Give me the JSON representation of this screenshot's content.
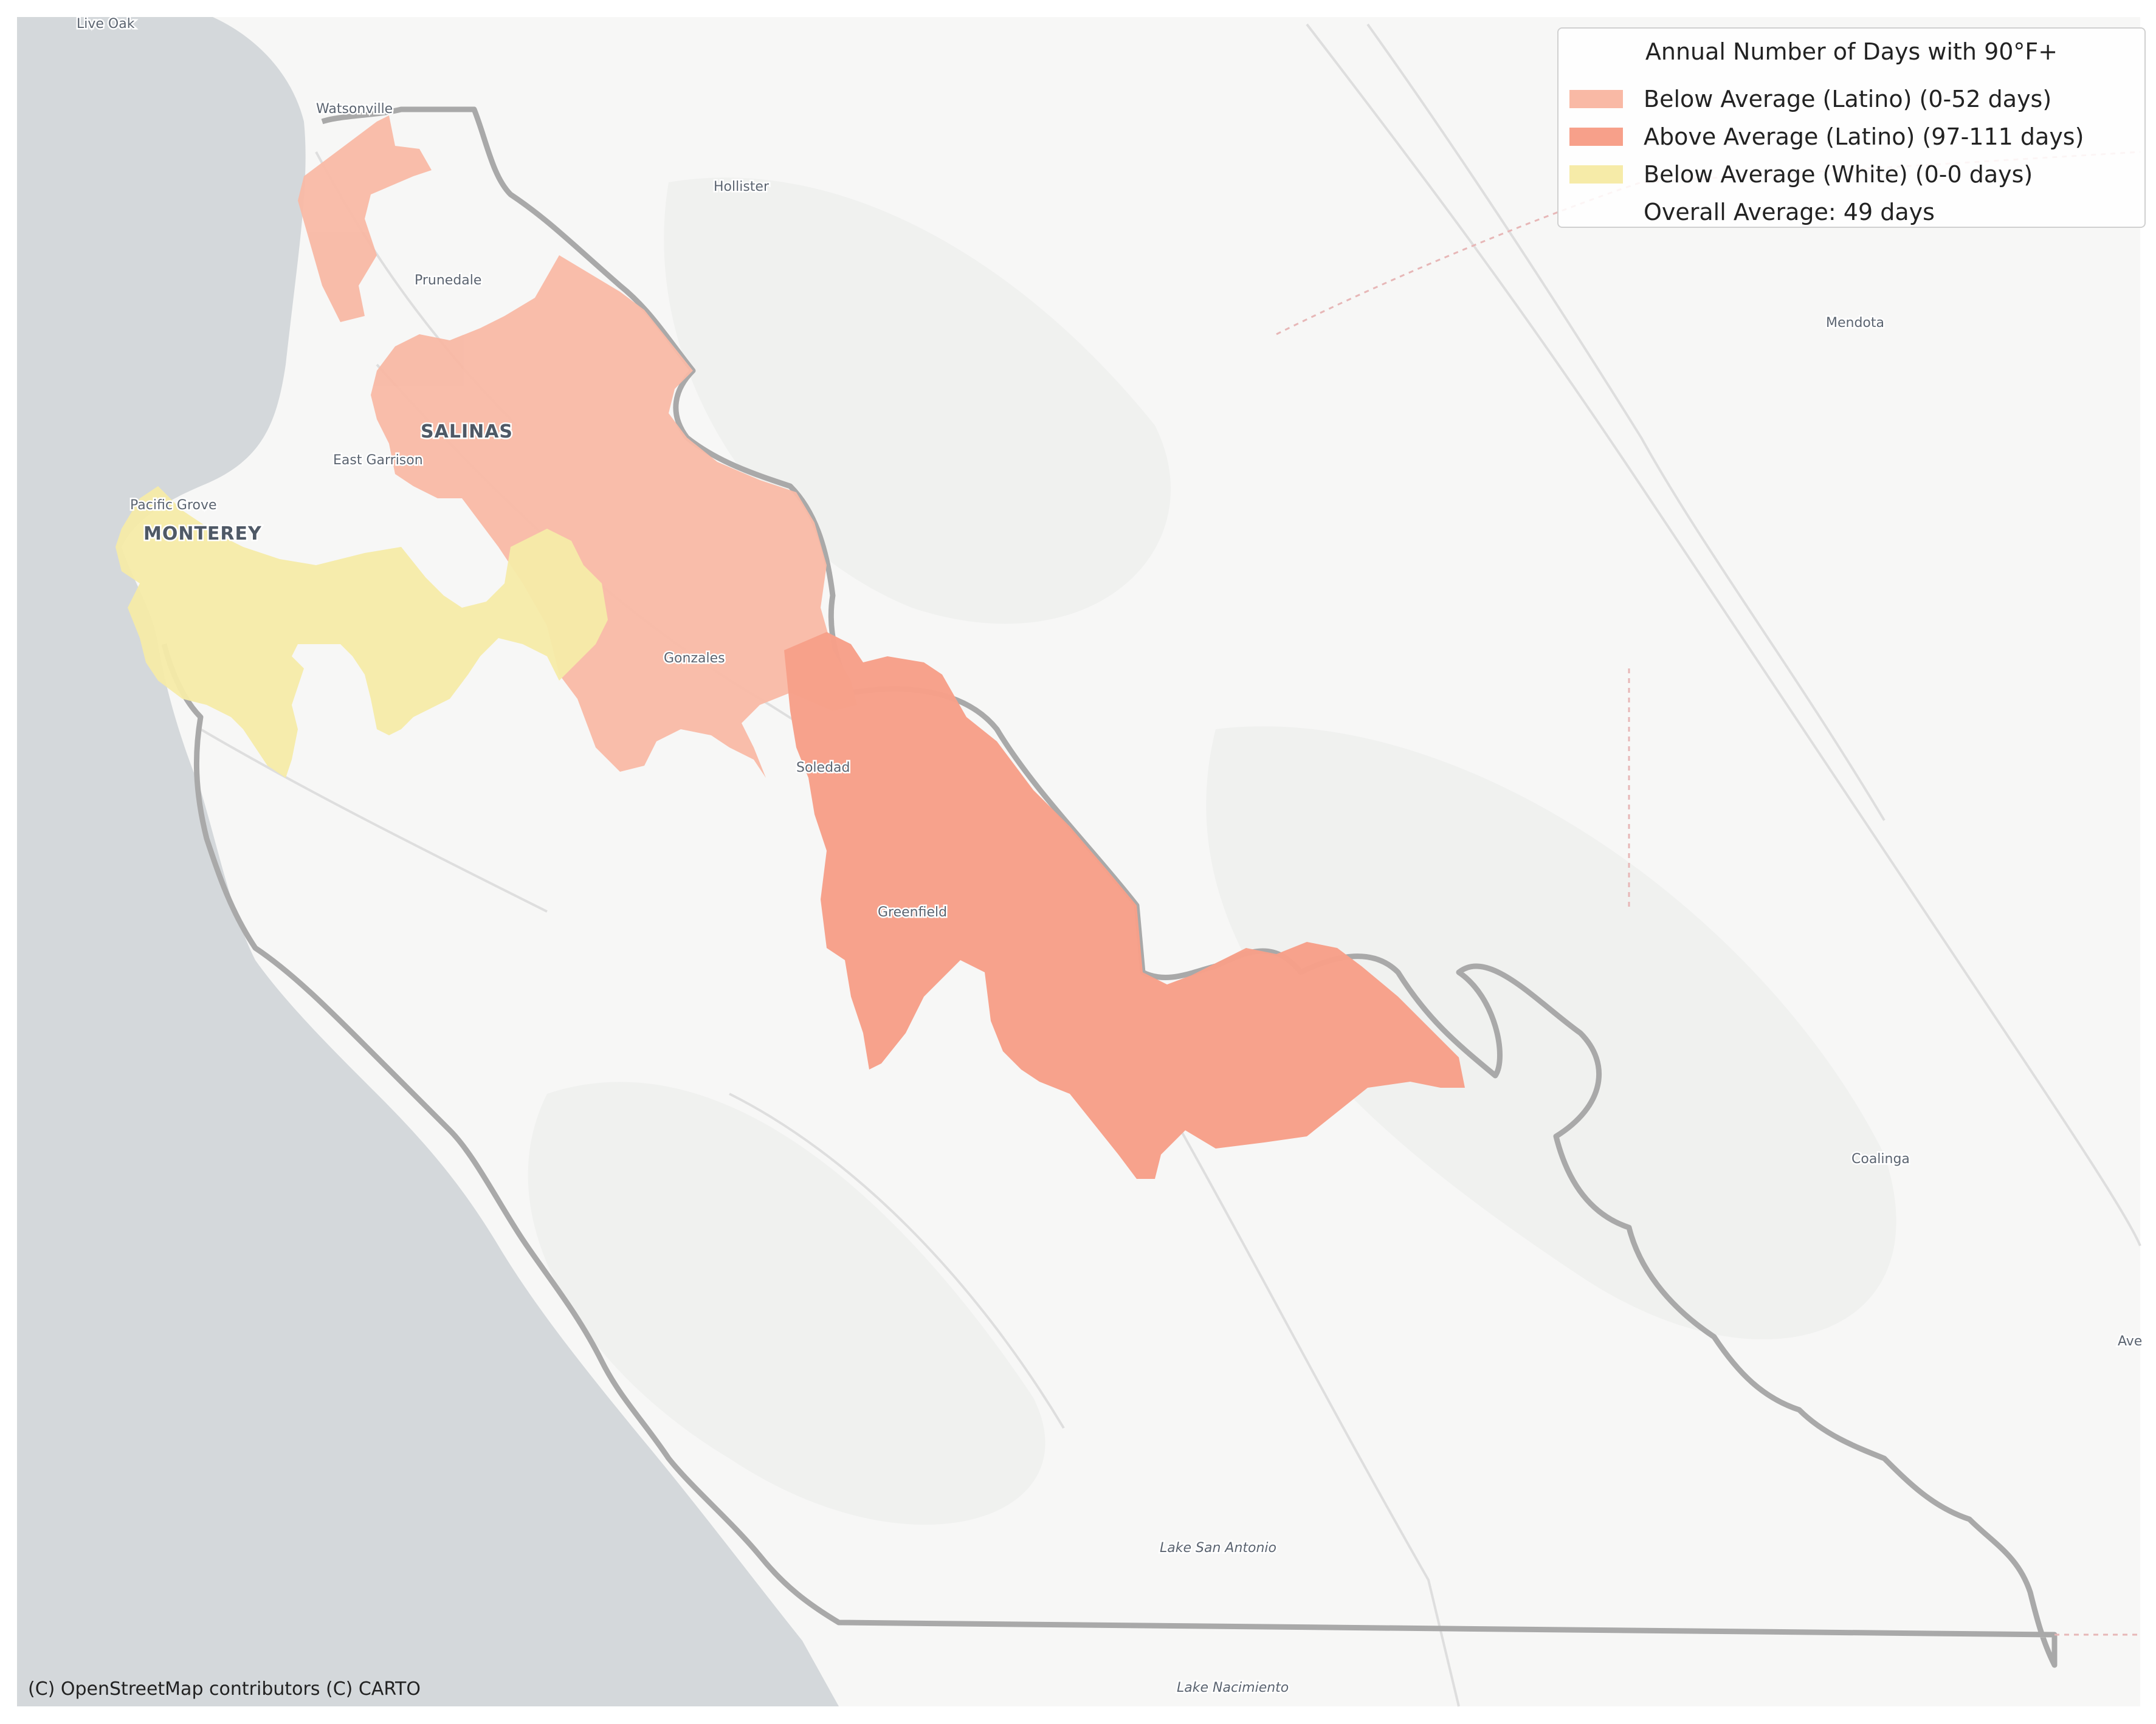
{
  "legend": {
    "title": "Annual Number of Days with 90°F+",
    "items": [
      {
        "label": "Below Average (Latino) (0-52 days)",
        "color": "#f9b9a5"
      },
      {
        "label": "Above Average (Latino) (97-111 days)",
        "color": "#f7a08a"
      },
      {
        "label": "Below Average (White) (0-0 days)",
        "color": "#f6eba8"
      },
      {
        "label": "Overall Average: 49 days",
        "color": "transparent"
      }
    ]
  },
  "places": {
    "live_oak": "Live Oak",
    "watsonville": "Watsonville",
    "hollister": "Hollister",
    "prunedale": "Prunedale",
    "mendota": "Mendota",
    "salinas": "SALINAS",
    "east_garrison": "East Garrison",
    "pacific_grove": "Pacific Grove",
    "monterey": "MONTEREY",
    "gonzales": "Gonzales",
    "soledad": "Soledad",
    "greenfield": "Greenfield",
    "coalinga": "Coalinga",
    "avenal": "Ave",
    "lake_san_antonio": "Lake San Antonio",
    "lake_nacimiento": "Lake Nacimiento"
  },
  "attribution": "(C) OpenStreetMap contributors (C) CARTO",
  "colors": {
    "land": "#f7f7f6",
    "ocean": "#d4d8db",
    "county_border": "#a9a9a9",
    "roads": "#dedede"
  }
}
